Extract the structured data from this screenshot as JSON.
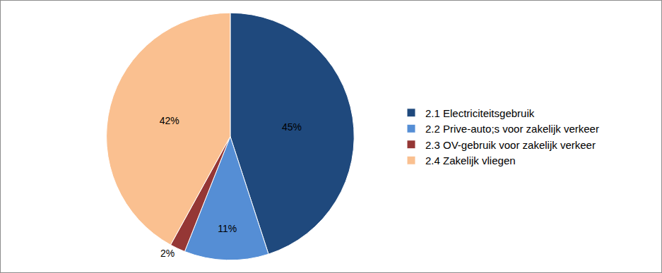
{
  "chart_data": {
    "type": "pie",
    "categories": [
      "2.1 Electriciteitsgebruik",
      "2.2 Prive-auto;s voor zakelijk verkeer",
      "2.3 OV-gebruik voor zakelijk verkeer",
      "2.4 Zakelijk vliegen"
    ],
    "values": [
      45,
      11,
      2,
      42
    ],
    "value_labels": [
      "45%",
      "11%",
      "2%",
      "42%"
    ],
    "colors": [
      "#1f497d",
      "#558ed5",
      "#953735",
      "#fac090"
    ],
    "data_labels": true,
    "legend": "right"
  }
}
